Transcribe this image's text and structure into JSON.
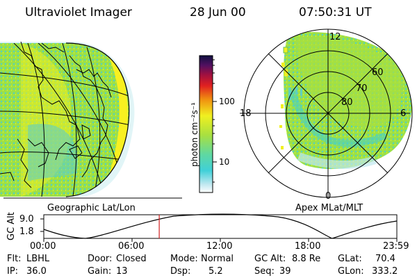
{
  "header": {
    "title": "Ultraviolet Imager",
    "date": "28 Jun 00",
    "time": "07:50:31 UT"
  },
  "panels": {
    "geo_label": "Geographic Lat/Lon",
    "apex_label": "Apex MLat/MLT"
  },
  "colorbar": {
    "label": "photon cm⁻²s⁻¹",
    "ticks": [
      "100",
      "10"
    ]
  },
  "polar": {
    "mlt_labels": [
      "12",
      "18",
      "6",
      "0"
    ],
    "lat_labels": [
      "60",
      "70",
      "80"
    ]
  },
  "altitude_plot": {
    "ylabel": "GC Alt",
    "yticks": [
      "9.0",
      "1.8"
    ],
    "xticks": [
      "00:00",
      "06:00",
      "12:00",
      "18:00",
      "23:59"
    ],
    "marker_time_hours": 7.84
  },
  "info": {
    "row1": [
      {
        "label": "Flt:",
        "value": "LBHL"
      },
      {
        "label": "Door:",
        "value": "Closed"
      },
      {
        "label": "Mode:",
        "value": "Normal"
      },
      {
        "label": "GC Alt:",
        "value": "8.8 Re"
      },
      {
        "label": "GLat:",
        "value": "70.4"
      }
    ],
    "row2": [
      {
        "label": "IP:",
        "value": "36.0"
      },
      {
        "label": "Gain:",
        "value": "13"
      },
      {
        "label": "Dsp:",
        "value": "5.2"
      },
      {
        "label": "Seq:",
        "value": "39"
      },
      {
        "label": "GLon:",
        "value": "333.2"
      }
    ]
  },
  "colors": {
    "ink": "#000000",
    "marker": "#d02020",
    "cyan": "#40d8d0",
    "green": "#8ce040",
    "yellow": "#f0f020"
  }
}
